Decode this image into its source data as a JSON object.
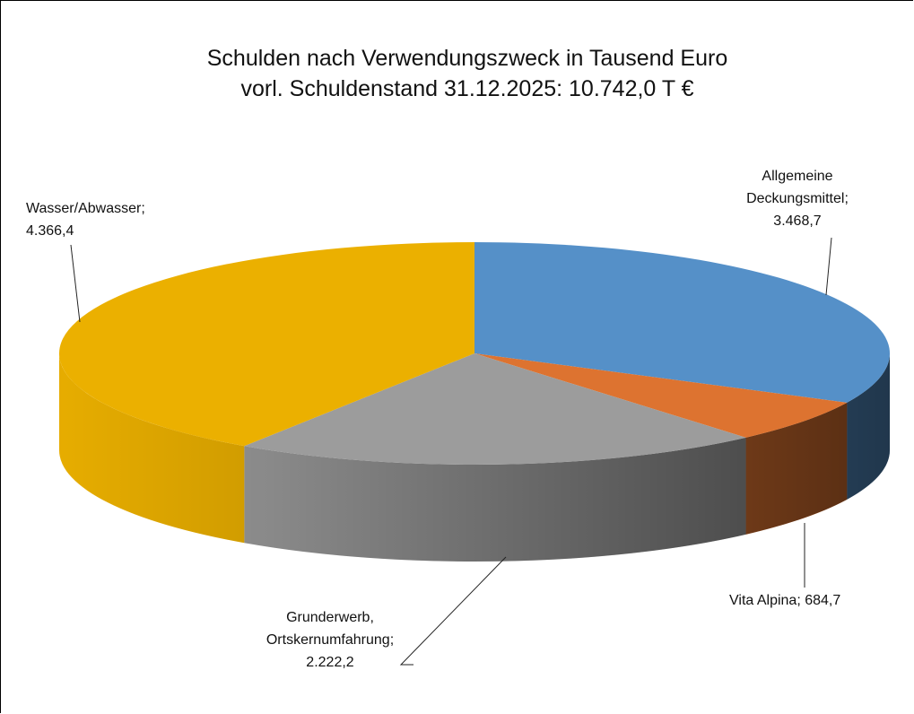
{
  "chart_data": {
    "type": "pie",
    "title": "Schulden nach Verwendungszweck in Tausend Euro",
    "subtitle": "vorl. Schuldenstand 31.12.2025: 10.742,0 T €",
    "categories": [
      "Allgemeine Deckungsmittel",
      "Vita Alpina",
      "Grunderwerb, Ortskernumfahrung",
      "Wasser/Abwasser"
    ],
    "values": [
      3468.7,
      684.7,
      2222.2,
      4366.4
    ],
    "value_labels": [
      "3.468,7",
      "684,7",
      "2.222,2",
      "4.366,4"
    ],
    "label_separator": ";",
    "colors": [
      "#5590c8",
      "#dd7330",
      "#9c9c9c",
      "#ebb000"
    ]
  }
}
